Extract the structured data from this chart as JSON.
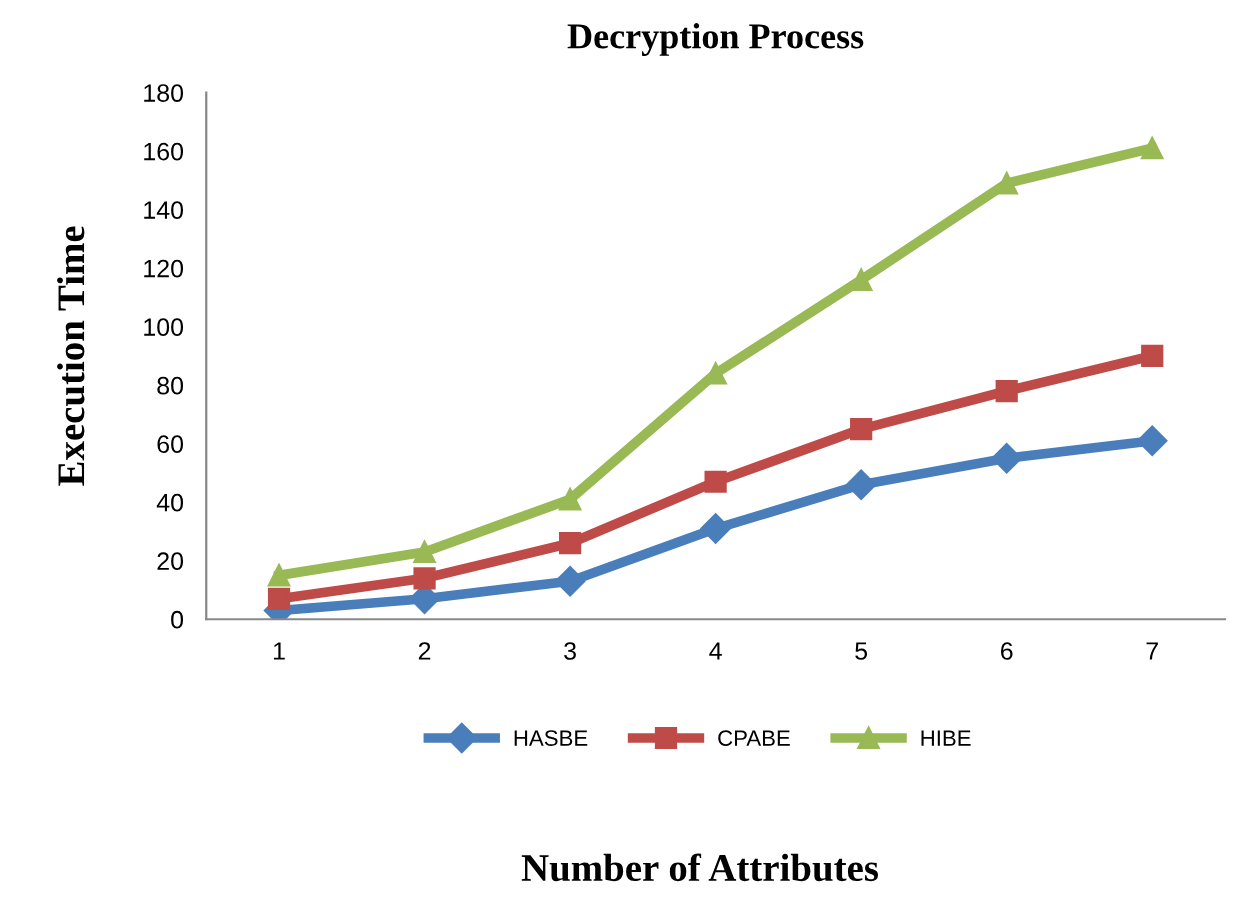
{
  "chart_data": {
    "type": "line",
    "title": "Decryption Process",
    "xlabel": "Number of Attributes",
    "ylabel": "Execution Time",
    "categories": [
      "1",
      "2",
      "3",
      "4",
      "5",
      "6",
      "7"
    ],
    "series": [
      {
        "name": "HASBE",
        "color": "#4a7ebb",
        "marker": "diamond",
        "values": [
          3,
          7,
          13,
          31,
          46,
          55,
          61
        ]
      },
      {
        "name": "CPABE",
        "color": "#be4b48",
        "marker": "square",
        "values": [
          7,
          14,
          26,
          47,
          65,
          78,
          90
        ]
      },
      {
        "name": "HIBE",
        "color": "#98b954",
        "marker": "triangle",
        "values": [
          15,
          23,
          41,
          84,
          116,
          149,
          161
        ]
      }
    ],
    "ylim": [
      0,
      180
    ],
    "yticks": [
      0,
      20,
      40,
      60,
      80,
      100,
      120,
      140,
      160,
      180
    ],
    "grid": false,
    "legend": "bottom"
  }
}
